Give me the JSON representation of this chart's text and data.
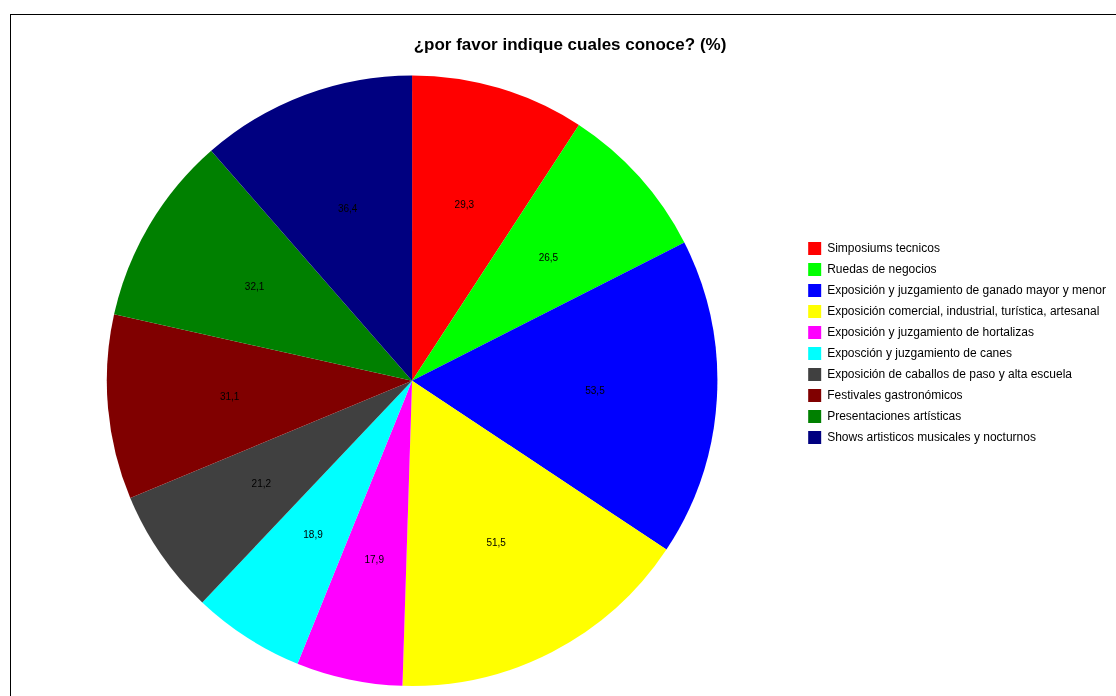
{
  "chart_data": {
    "type": "pie",
    "title": "¿por favor indique cuales conoce? (%)",
    "categories": [
      "Simposiums tecnicos",
      "Ruedas de negocios",
      "Exposición y juzgamiento de ganado mayor y menor",
      "Exposición comercial, industrial, turística, artesanal",
      "Exposición y juzgamiento de hortalizas",
      "Exposción y juzgamiento de canes",
      "Exposición de caballos de paso y alta escuela",
      "Festivales gastronómicos",
      "Presentaciones artísticas",
      "Shows artisticos musicales y nocturnos"
    ],
    "values": [
      29.3,
      26.5,
      53.5,
      51.5,
      17.9,
      18.9,
      21.2,
      31.1,
      32.1,
      36.4
    ],
    "value_labels": [
      "29,3",
      "26,5",
      "53,5",
      "51,5",
      "17,9",
      "18,9",
      "21,2",
      "31,1",
      "32,1",
      "36,4"
    ],
    "colors": [
      "#ff0000",
      "#00ff00",
      "#0000ff",
      "#ffff00",
      "#ff00ff",
      "#00ffff",
      "#404040",
      "#800000",
      "#008000",
      "#000080"
    ],
    "legend": "right"
  }
}
